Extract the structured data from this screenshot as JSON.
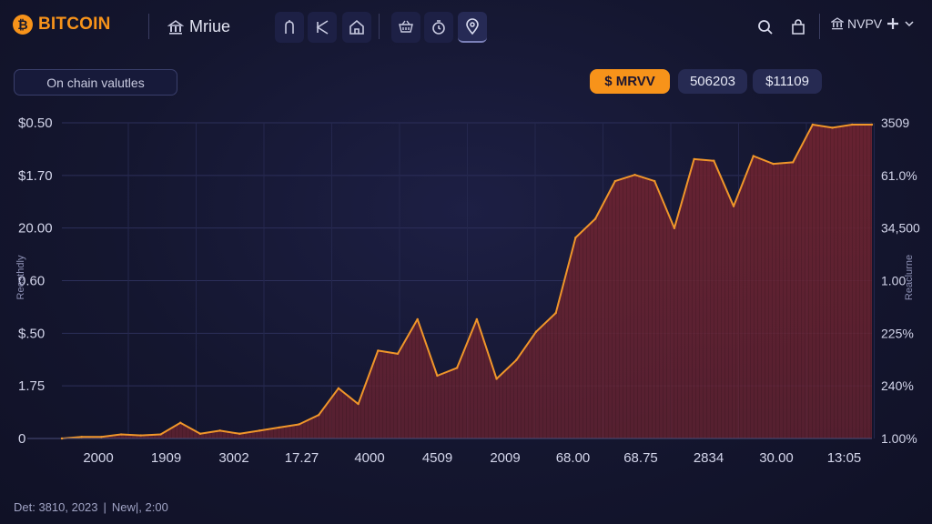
{
  "header": {
    "brand_symbol": "₿",
    "brand_name": "BITCOIN",
    "nav_title": "Mriue",
    "user_label": "NVPV",
    "toolbar_icons": [
      "fork-icon",
      "back-icon",
      "home-icon",
      "basket-icon",
      "timer-icon",
      "location-icon"
    ],
    "right_icons": [
      "search-icon",
      "bag-icon"
    ]
  },
  "controls": {
    "section_label": "On chain valutles",
    "metric_accent": "$  MRVV",
    "metric_2": "506203",
    "metric_3": "$11109"
  },
  "chart_data": {
    "type": "area",
    "x_tick_labels": [
      "2000",
      "1909",
      "3002",
      "17.27",
      "4000",
      "4509",
      "2009",
      "68.00",
      "68.75",
      "2834",
      "30.00",
      "13:05"
    ],
    "y_left_labels": [
      "$0.50",
      "$1.70",
      "20.00",
      "0.60",
      "$.50",
      "1.75",
      "0"
    ],
    "y_right_labels": [
      "3509",
      "61.0%",
      "34,500",
      "1.00",
      "225%",
      "240%",
      "1.00%"
    ],
    "ylabel_left": "Reesthdly",
    "ylabel_right": "Reaclurne",
    "ylim": [
      0,
      100
    ],
    "grid": true,
    "colors": {
      "line": "#f0962a",
      "fill": "#6b2331"
    },
    "values": [
      0,
      0.5,
      0.5,
      1.3,
      1,
      1.3,
      5,
      1.5,
      2.5,
      1.5,
      2.5,
      3.5,
      4.5,
      7.5,
      16,
      11,
      28,
      27,
      38,
      20,
      22.5,
      38,
      19,
      25,
      34,
      40,
      64,
      70,
      82,
      84,
      82,
      67,
      89,
      88.5,
      74,
      90,
      87.5,
      88,
      100,
      99,
      100,
      100
    ]
  },
  "footer": {
    "date_text": "Det: 3810, 2023",
    "separator": "|",
    "news_text": "New|, 2:00"
  }
}
